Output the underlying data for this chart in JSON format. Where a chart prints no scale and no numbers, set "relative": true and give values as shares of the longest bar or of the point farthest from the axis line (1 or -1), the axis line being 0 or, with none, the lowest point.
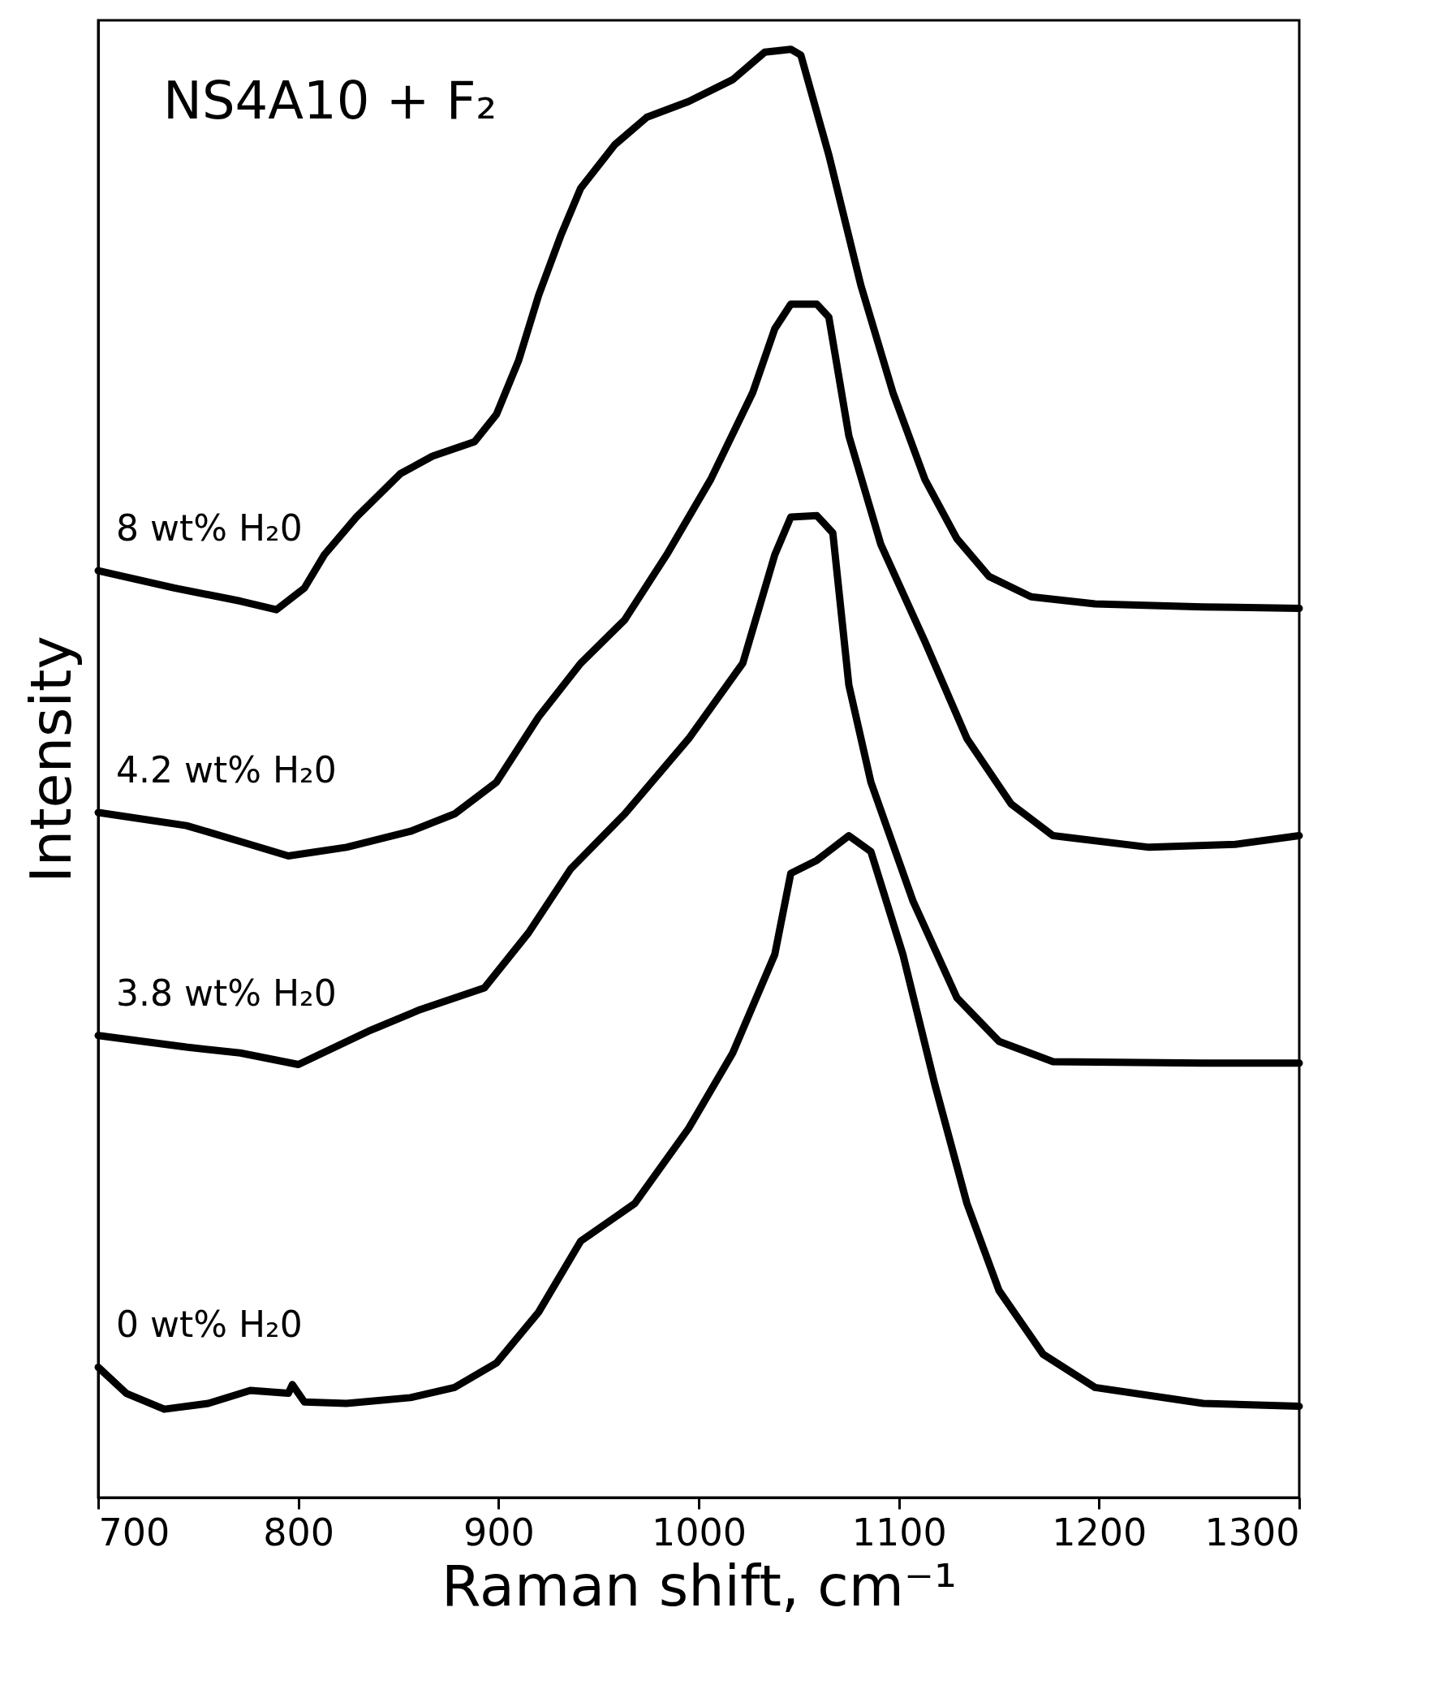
{
  "chart_data": {
    "type": "line",
    "title": "NS4A10 + F₂",
    "xlabel": "Raman shift, cm⁻¹",
    "ylabel": "Intensity",
    "relative": true,
    "xlim": [
      700,
      1300
    ],
    "xticks": [
      700,
      800,
      900,
      1000,
      1100,
      1200,
      1300
    ],
    "tick_labels": "x",
    "grid": false,
    "legend": false,
    "line_style": "solid",
    "series": [
      {
        "name": "8 wt% H₂0",
        "color": "#000000",
        "x": [
          700,
          738,
          771,
          789,
          803,
          813,
          829,
          851,
          867,
          888,
          899,
          910,
          920,
          931,
          941,
          958,
          974,
          995,
          1017,
          1033,
          1046,
          1051,
          1065,
          1081,
          1097,
          1113,
          1129,
          1145,
          1166,
          1198,
          1252,
          1300
        ],
        "values": [
          0.64,
          0.628,
          0.619,
          0.613,
          0.628,
          0.651,
          0.677,
          0.707,
          0.719,
          0.729,
          0.748,
          0.785,
          0.83,
          0.871,
          0.904,
          0.934,
          0.953,
          0.964,
          0.979,
          0.998,
          1.0,
          0.996,
          0.927,
          0.837,
          0.763,
          0.703,
          0.662,
          0.636,
          0.622,
          0.617,
          0.615,
          0.614
        ]
      },
      {
        "name": "4.2 wt% H₂0",
        "color": "#000000",
        "x": [
          700,
          744,
          771,
          795,
          824,
          856,
          878,
          899,
          920,
          941,
          963,
          984,
          1006,
          1027,
          1038,
          1046,
          1059,
          1065,
          1075,
          1091,
          1113,
          1134,
          1156,
          1177,
          1225,
          1268,
          1300
        ],
        "values": [
          0.473,
          0.464,
          0.453,
          0.443,
          0.449,
          0.46,
          0.472,
          0.494,
          0.539,
          0.576,
          0.606,
          0.651,
          0.703,
          0.763,
          0.807,
          0.824,
          0.824,
          0.815,
          0.733,
          0.658,
          0.591,
          0.524,
          0.479,
          0.457,
          0.449,
          0.451,
          0.457
        ]
      },
      {
        "name": "3.8 wt% H₂0",
        "color": "#000000",
        "x": [
          700,
          744,
          771,
          800,
          835,
          861,
          893,
          915,
          936,
          963,
          995,
          1022,
          1038,
          1046,
          1059,
          1067,
          1075,
          1086,
          1107,
          1129,
          1150,
          1177,
          1252,
          1300
        ],
        "values": [
          0.319,
          0.311,
          0.307,
          0.299,
          0.322,
          0.337,
          0.352,
          0.39,
          0.434,
          0.472,
          0.524,
          0.576,
          0.651,
          0.677,
          0.678,
          0.666,
          0.561,
          0.494,
          0.412,
          0.345,
          0.315,
          0.301,
          0.3,
          0.3
        ]
      },
      {
        "name": "0 wt% H₂0",
        "color": "#000000",
        "x": [
          700,
          714,
          733,
          755,
          776,
          795,
          797,
          803,
          824,
          856,
          878,
          899,
          920,
          941,
          968,
          995,
          1017,
          1038,
          1046,
          1059,
          1075,
          1086,
          1102,
          1118,
          1134,
          1150,
          1172,
          1198,
          1252,
          1300
        ],
        "values": [
          0.09,
          0.072,
          0.061,
          0.065,
          0.074,
          0.072,
          0.078,
          0.066,
          0.065,
          0.069,
          0.076,
          0.093,
          0.128,
          0.177,
          0.203,
          0.255,
          0.307,
          0.375,
          0.431,
          0.44,
          0.457,
          0.446,
          0.375,
          0.285,
          0.203,
          0.143,
          0.099,
          0.076,
          0.065,
          0.063
        ]
      }
    ]
  }
}
